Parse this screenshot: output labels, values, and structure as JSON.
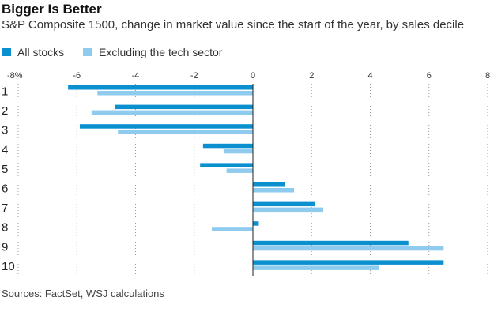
{
  "chart_data": {
    "type": "bar",
    "orientation": "horizontal",
    "title": "Bigger Is Better",
    "subtitle": "S&P Composite 1500, change in market value since the start of the year, by sales decile",
    "source": "Sources: FactSet, WSJ calculations",
    "categories": [
      "1",
      "2",
      "3",
      "4",
      "5",
      "6",
      "7",
      "8",
      "9",
      "10"
    ],
    "xlim": [
      -8,
      8
    ],
    "xticks": [
      -8,
      -6,
      -4,
      -2,
      0,
      2,
      4,
      6,
      8
    ],
    "xtick_labels": [
      "-8%",
      "-6",
      "-4",
      "-2",
      "0",
      "2",
      "4",
      "6",
      "8"
    ],
    "legend_position": "top-left",
    "grid": "vertical-dotted",
    "series": [
      {
        "name": "All stocks",
        "color": "#0a8fcf",
        "values": [
          -6.3,
          -4.7,
          -5.9,
          -1.7,
          -1.8,
          1.1,
          2.1,
          0.2,
          5.3,
          6.5
        ]
      },
      {
        "name": "Excluding the tech sector",
        "color": "#8ecbee",
        "values": [
          -5.3,
          -5.5,
          -4.6,
          -1.0,
          -0.9,
          1.4,
          2.4,
          -1.4,
          6.5,
          4.3
        ]
      }
    ]
  }
}
